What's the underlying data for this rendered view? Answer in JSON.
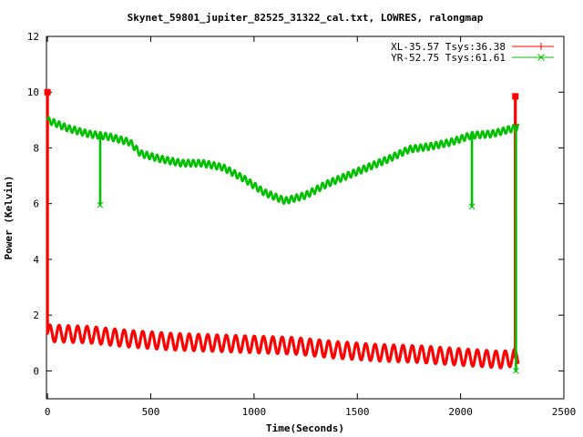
{
  "chart_data": {
    "type": "line",
    "title": "Skynet_59801_jupiter_82525_31322_cal.txt, LOWRES, ralongmap",
    "xlabel": "Time(Seconds)",
    "ylabel": "Power (Kelvin)",
    "xlim": [
      -5,
      2500
    ],
    "ylim": [
      -1,
      12
    ],
    "xticks": [
      0,
      500,
      1000,
      1500,
      2000,
      2500
    ],
    "yticks": [
      0,
      2,
      4,
      6,
      8,
      10,
      12
    ],
    "grid": false,
    "legend_position": "top-right",
    "series": [
      {
        "name": "XL-35.57 Tsys:36.38",
        "color": "#ff0000",
        "marker": "plus",
        "trend_points": [
          [
            10,
            1.35
          ],
          [
            200,
            1.3
          ],
          [
            400,
            1.15
          ],
          [
            600,
            1.05
          ],
          [
            800,
            1.0
          ],
          [
            1000,
            0.95
          ],
          [
            1200,
            0.9
          ],
          [
            1400,
            0.75
          ],
          [
            1600,
            0.65
          ],
          [
            1800,
            0.6
          ],
          [
            2000,
            0.5
          ],
          [
            2200,
            0.4
          ],
          [
            2280,
            0.5
          ]
        ],
        "oscillation_amplitude": 0.3,
        "oscillation_period_s": 45,
        "spikes": [
          {
            "x": 0,
            "y": 10.0
          },
          {
            "x": 2265,
            "y": 9.85
          }
        ]
      },
      {
        "name": "YR-52.75 Tsys:61.61",
        "color": "#00c000",
        "marker": "x",
        "trend_points": [
          [
            0,
            9.0
          ],
          [
            100,
            8.7
          ],
          [
            200,
            8.5
          ],
          [
            300,
            8.4
          ],
          [
            400,
            8.2
          ],
          [
            450,
            7.8
          ],
          [
            550,
            7.6
          ],
          [
            650,
            7.45
          ],
          [
            750,
            7.45
          ],
          [
            850,
            7.3
          ],
          [
            950,
            6.9
          ],
          [
            1050,
            6.4
          ],
          [
            1150,
            6.1
          ],
          [
            1250,
            6.3
          ],
          [
            1350,
            6.7
          ],
          [
            1450,
            7.0
          ],
          [
            1550,
            7.3
          ],
          [
            1650,
            7.6
          ],
          [
            1750,
            7.95
          ],
          [
            1850,
            8.05
          ],
          [
            1950,
            8.2
          ],
          [
            2050,
            8.45
          ],
          [
            2150,
            8.5
          ],
          [
            2280,
            8.75
          ]
        ],
        "oscillation_amplitude": 0.12,
        "oscillation_period_s": 25,
        "spikes": [
          {
            "x": 255,
            "y": 5.95
          },
          {
            "x": 2055,
            "y": 5.9
          },
          {
            "x": 2268,
            "y": 0.0
          }
        ]
      }
    ]
  }
}
